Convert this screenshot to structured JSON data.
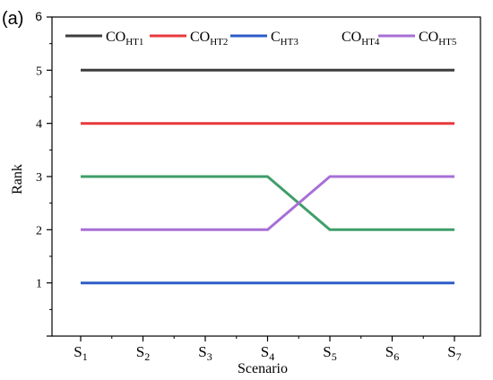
{
  "panel_label": "(a)",
  "chart_data": {
    "type": "line",
    "title": "",
    "xlabel": "Scenario",
    "ylabel": "Rank",
    "ylim": [
      0,
      6
    ],
    "yticks": [
      1,
      2,
      3,
      4,
      5
    ],
    "y_top_label": "6",
    "categories": [
      {
        "base": "S",
        "sub": "1"
      },
      {
        "base": "S",
        "sub": "2"
      },
      {
        "base": "S",
        "sub": "3"
      },
      {
        "base": "S",
        "sub": "4"
      },
      {
        "base": "S",
        "sub": "5"
      },
      {
        "base": "S",
        "sub": "6"
      },
      {
        "base": "S",
        "sub": "7"
      }
    ],
    "legend_placement": "top",
    "grid": false,
    "series": [
      {
        "name": "CO",
        "name_sub": "HT1",
        "color": "#3d3d3d",
        "values": [
          5,
          5,
          5,
          5,
          5,
          5,
          5
        ]
      },
      {
        "name": "CO",
        "name_sub": "HT2",
        "color": "#e8393b",
        "values": [
          4,
          4,
          4,
          4,
          4,
          4,
          4
        ]
      },
      {
        "name": "C",
        "name_sub": "HT3",
        "color": "#2e5cc8",
        "values": [
          1,
          1,
          1,
          1,
          1,
          1,
          1
        ]
      },
      {
        "name": "CO",
        "name_sub": "HT4",
        "color": "#3f9e6a",
        "values": [
          3,
          3,
          3,
          3,
          2,
          2,
          2
        ],
        "legend_swatch": false
      },
      {
        "name": "CO",
        "name_sub": "HT5",
        "color": "#a86fd6",
        "values": [
          2,
          2,
          2,
          2,
          3,
          3,
          3
        ]
      }
    ]
  }
}
